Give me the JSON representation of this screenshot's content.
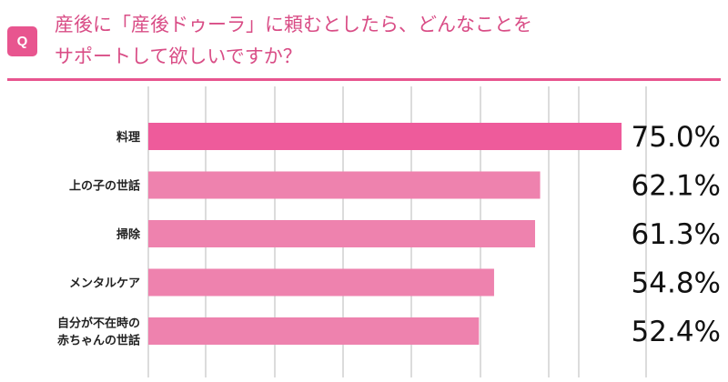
{
  "header": {
    "badge": "Q",
    "question_line1": "産後に「産後ドゥーラ」に頼むとしたら、どんなことを",
    "question_line2": "サポートして欲しいですか？"
  },
  "colors": {
    "accent": "#e8558f",
    "bar_highlight": "#ee5b9b",
    "bar": "#ee82ae",
    "grid": "#b9b9b9"
  },
  "chart_data": {
    "type": "bar",
    "orientation": "horizontal",
    "categories": [
      [
        "料理"
      ],
      [
        "上の子の世話"
      ],
      [
        "掃除"
      ],
      [
        "メンタルケア"
      ],
      [
        "自分が不在時の",
        "赤ちゃんの世話"
      ]
    ],
    "values": [
      75.0,
      62.1,
      61.3,
      54.8,
      52.4
    ],
    "value_labels": [
      "75.0%",
      "62.1%",
      "61.3%",
      "54.8%",
      "52.4%"
    ],
    "xlim": [
      0,
      75
    ],
    "grid": true,
    "highlight_index": 0
  }
}
